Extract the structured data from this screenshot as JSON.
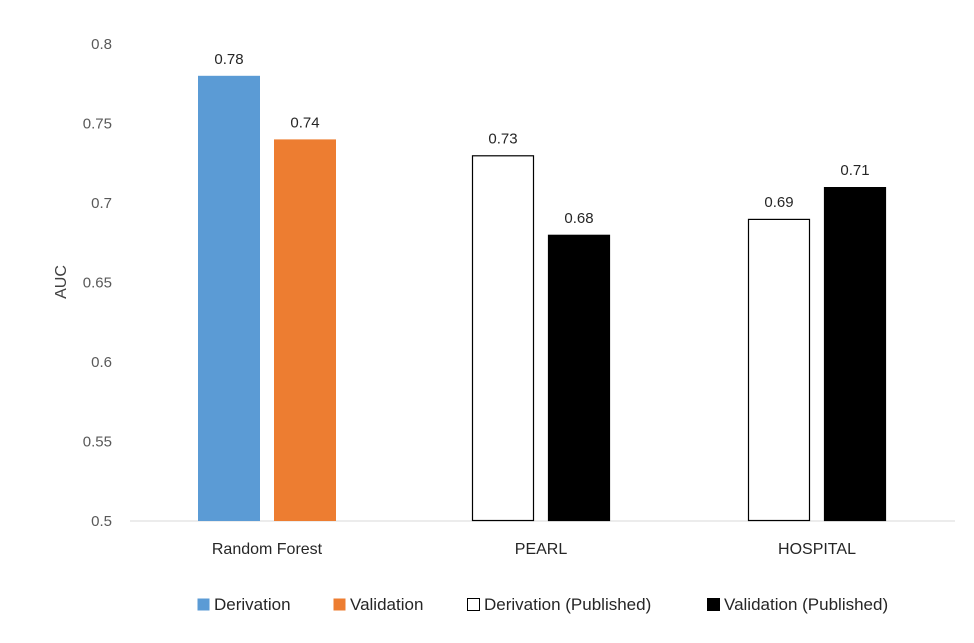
{
  "chart_data": {
    "type": "bar",
    "title": "",
    "xlabel": "",
    "ylabel": "AUC",
    "ylim": [
      0.5,
      0.8
    ],
    "yticks": [
      "0.5",
      "0.55",
      "0.6",
      "0.65",
      "0.7",
      "0.75",
      "0.8"
    ],
    "categories": [
      "Random Forest",
      "PEARL",
      "HOSPITAL"
    ],
    "groups": [
      {
        "category": "Random Forest",
        "bars": [
          {
            "series": "Derivation",
            "value": 0.78,
            "label": "0.78"
          },
          {
            "series": "Validation",
            "value": 0.74,
            "label": "0.74"
          }
        ]
      },
      {
        "category": "PEARL",
        "bars": [
          {
            "series": "Derivation (Published)",
            "value": 0.73,
            "label": "0.73"
          },
          {
            "series": "Validation (Published)",
            "value": 0.68,
            "label": "0.68"
          }
        ]
      },
      {
        "category": "HOSPITAL",
        "bars": [
          {
            "series": "Derivation (Published)",
            "value": 0.69,
            "label": "0.69"
          },
          {
            "series": "Validation (Published)",
            "value": 0.71,
            "label": "0.71"
          }
        ]
      }
    ],
    "series": [
      {
        "name": "Derivation",
        "fill": "#5B9BD5",
        "stroke": "none"
      },
      {
        "name": "Validation",
        "fill": "#ED7D31",
        "stroke": "none"
      },
      {
        "name": "Derivation (Published)",
        "fill": "#FFFFFF",
        "stroke": "#000000"
      },
      {
        "name": "Validation (Published)",
        "fill": "#000000",
        "stroke": "#000000"
      }
    ],
    "legend": "bottom",
    "grid": false
  }
}
